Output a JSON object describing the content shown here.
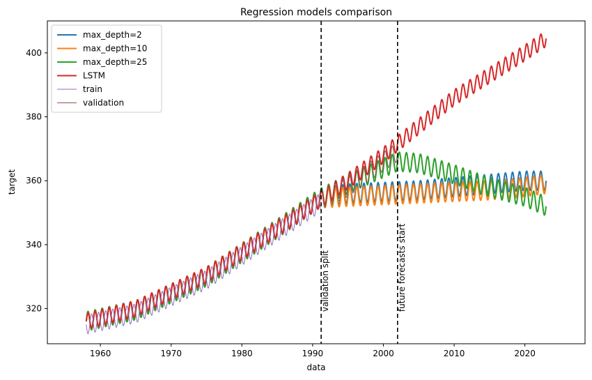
{
  "chart_data": {
    "type": "line",
    "title": "Regression models comparison",
    "xlabel": "data",
    "ylabel": "target",
    "xlim": [
      1952.5,
      2028.5
    ],
    "ylim": [
      309,
      410
    ],
    "xticks": [
      1960,
      1970,
      1980,
      1990,
      2000,
      2010,
      2020
    ],
    "yticks": [
      320,
      340,
      360,
      380,
      400
    ],
    "grid": false,
    "legend_position": "top-left",
    "series": [
      {
        "name": "max_depth=2",
        "color": "#1f77b4",
        "linewidth": 2,
        "x_range": [
          1958.0,
          2023.0
        ],
        "seasonal_amplitude": 3.0,
        "trend": [
          [
            1958,
            316
          ],
          [
            1965,
            319.5
          ],
          [
            1975,
            330
          ],
          [
            1985,
            345
          ],
          [
            1991,
            354.5
          ],
          [
            1995,
            356
          ],
          [
            2000,
            356.5
          ],
          [
            2005,
            357
          ],
          [
            2010,
            358
          ],
          [
            2015,
            359
          ],
          [
            2020,
            360
          ],
          [
            2023,
            360
          ]
        ]
      },
      {
        "name": "max_depth=10",
        "color": "#ff7f0e",
        "linewidth": 2,
        "x_range": [
          1958.0,
          2023.0
        ],
        "seasonal_amplitude": 3.0,
        "trend": [
          [
            1958,
            316
          ],
          [
            1965,
            319.5
          ],
          [
            1975,
            330
          ],
          [
            1985,
            345
          ],
          [
            1991,
            354.5
          ],
          [
            1995,
            355
          ],
          [
            2000,
            355.5
          ],
          [
            2005,
            356
          ],
          [
            2010,
            356.5
          ],
          [
            2015,
            357
          ],
          [
            2020,
            358
          ],
          [
            2023,
            359
          ]
        ]
      },
      {
        "name": "max_depth=25",
        "color": "#2ca02c",
        "linewidth": 2,
        "x_range": [
          1958.0,
          2023.0
        ],
        "seasonal_amplitude": 3.0,
        "trend": [
          [
            1958,
            316
          ],
          [
            1965,
            319.5
          ],
          [
            1975,
            330
          ],
          [
            1985,
            345
          ],
          [
            1991,
            354.5
          ],
          [
            1995,
            359
          ],
          [
            2000,
            364
          ],
          [
            2002,
            366
          ],
          [
            2005,
            365.5
          ],
          [
            2010,
            362
          ],
          [
            2015,
            358
          ],
          [
            2020,
            355
          ],
          [
            2023,
            352
          ]
        ]
      },
      {
        "name": "LSTM",
        "color": "#d62728",
        "linewidth": 2,
        "x_range": [
          1958.0,
          2023.0
        ],
        "seasonal_amplitude": 2.5,
        "trend": [
          [
            1958,
            316
          ],
          [
            1965,
            320
          ],
          [
            1975,
            330.5
          ],
          [
            1985,
            345
          ],
          [
            1991,
            354
          ],
          [
            1995,
            360
          ],
          [
            2000,
            368
          ],
          [
            2005,
            377
          ],
          [
            2010,
            386
          ],
          [
            2015,
            393
          ],
          [
            2020,
            400
          ],
          [
            2023,
            404.5
          ]
        ]
      },
      {
        "name": "train",
        "color": "#9467bd",
        "linewidth": 1,
        "x_range": [
          1958.0,
          1991.2
        ],
        "seasonal_amplitude": 3.0,
        "phase_shift": 0.5,
        "trend": [
          [
            1958,
            315
          ],
          [
            1965,
            318.5
          ],
          [
            1975,
            329
          ],
          [
            1985,
            344
          ],
          [
            1991,
            353
          ]
        ]
      },
      {
        "name": "validation",
        "color": "#8c564b",
        "linewidth": 1,
        "x_range": [
          1991.2,
          2002.0
        ],
        "seasonal_amplitude": 3.0,
        "trend": [
          [
            1991.2,
            354
          ],
          [
            1995,
            358
          ],
          [
            2000,
            366
          ],
          [
            2002,
            369
          ]
        ]
      }
    ],
    "vlines": [
      {
        "x": 1991.2,
        "label": "validation split"
      },
      {
        "x": 2002.0,
        "label": "future forecasts start"
      }
    ]
  }
}
